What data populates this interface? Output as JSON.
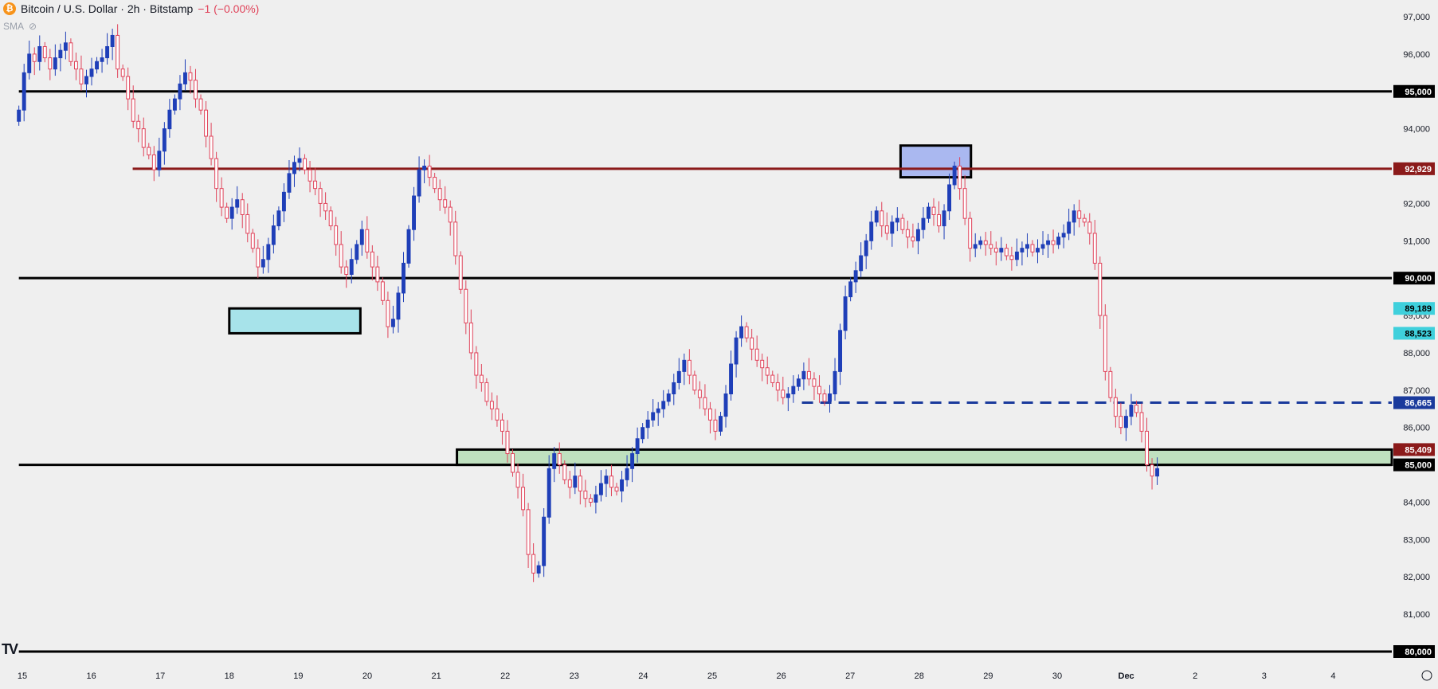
{
  "header": {
    "symbol_icon": "bitcoin-icon",
    "title": "Bitcoin / U.S. Dollar · 2h · Bitstamp",
    "change": "−1 (−0.00%)",
    "indicator": "SMA"
  },
  "colors": {
    "background": "#efefef",
    "bull": "#1f3fb8",
    "bear": "#e0435a",
    "black_level": "#000000",
    "maroon_level": "#8b1a1a",
    "dash_level": "#1a3a9c",
    "blue_zone": "#a7e3ea",
    "green_zone": "#bfe0bf",
    "top_box": "#aab8f0"
  },
  "chart_data": {
    "type": "candlestick",
    "symbol": "BTC/USD",
    "interval": "2h",
    "exchange": "Bitstamp",
    "x_ticks": [
      "15",
      "16",
      "17",
      "18",
      "19",
      "20",
      "21",
      "22",
      "23",
      "24",
      "25",
      "26",
      "27",
      "28",
      "29",
      "30",
      "Dec",
      "2",
      "3",
      "4"
    ],
    "y_ticks": [
      "97,000",
      "96,000",
      "95,000",
      "94,000",
      "93,000",
      "92,000",
      "91,000",
      "90,000",
      "89,000",
      "88,000",
      "87,000",
      "86,000",
      "85,000",
      "84,000",
      "83,000",
      "82,000",
      "81,000",
      "80,000"
    ],
    "ylim": [
      79600,
      97300
    ],
    "xlim": [
      14.95,
      19.9
    ],
    "price_labels": [
      {
        "text": "95,000",
        "value": 95000,
        "style": "black"
      },
      {
        "text": "92,929",
        "value": 92929,
        "style": "maroon"
      },
      {
        "text": "90,000",
        "value": 90000,
        "style": "black"
      },
      {
        "text": "89,189",
        "value": 89189,
        "style": "cyan"
      },
      {
        "text": "88,523",
        "value": 88523,
        "style": "cyan"
      },
      {
        "text": "86,665",
        "value": 86665,
        "style": "navy"
      },
      {
        "text": "85,409",
        "value": 85409,
        "style": "maroon"
      },
      {
        "text": "85,000",
        "value": 85000,
        "style": "black"
      },
      {
        "text": "80,000",
        "value": 80000,
        "style": "black"
      }
    ],
    "levels": [
      {
        "price": 95000,
        "from": 14.95,
        "style": "black"
      },
      {
        "price": 92929,
        "from": 16.6,
        "style": "maroon"
      },
      {
        "price": 90000,
        "from": 14.95,
        "style": "black"
      },
      {
        "price": 85000,
        "from": 14.95,
        "style": "black"
      },
      {
        "price": 80000,
        "from": 14.95,
        "style": "black"
      },
      {
        "price": 86665,
        "from": 26.3,
        "style": "dashed"
      }
    ],
    "zones": [
      {
        "from": 18.0,
        "to": 19.9,
        "low": 88523,
        "high": 89189,
        "style": "cyan"
      },
      {
        "from": 21.3,
        "to": 19.9,
        "low": 85000,
        "high": 85409,
        "style": "green"
      },
      {
        "from": 27.73,
        "to": 28.75,
        "low": 92700,
        "high": 93550,
        "style": "blue"
      }
    ],
    "candle_x_range": [
      14.95,
      31.45
    ],
    "closes": [
      94500,
      95500,
      96000,
      95800,
      96200,
      95900,
      95600,
      95900,
      96100,
      96300,
      95800,
      95600,
      95200,
      95400,
      95600,
      95800,
      95900,
      96200,
      96500,
      95600,
      95400,
      94800,
      94200,
      94000,
      93500,
      93300,
      92900,
      93400,
      94000,
      94500,
      94800,
      95200,
      95500,
      95300,
      94800,
      94500,
      93800,
      93200,
      92400,
      91900,
      91600,
      91900,
      92100,
      91700,
      91200,
      90800,
      90300,
      90500,
      90900,
      91400,
      91800,
      92300,
      92800,
      93100,
      93200,
      92900,
      92600,
      92400,
      92000,
      91800,
      91400,
      90900,
      90300,
      90100,
      90500,
      90900,
      91300,
      90700,
      90300,
      89900,
      89400,
      88700,
      88900,
      89600,
      90400,
      91300,
      92200,
      92900,
      93000,
      92700,
      92400,
      92100,
      91900,
      91500,
      90600,
      89700,
      88800,
      88000,
      87400,
      87200,
      86700,
      86500,
      86200,
      85900,
      85300,
      84800,
      84400,
      83800,
      82600,
      82100,
      82300,
      83600,
      84900,
      85300,
      85000,
      84600,
      84400,
      84700,
      84300,
      84100,
      84000,
      84200,
      84500,
      84700,
      84400,
      84300,
      84600,
      84900,
      85300,
      85700,
      86000,
      86200,
      86400,
      86500,
      86700,
      86900,
      87200,
      87500,
      87800,
      87400,
      87000,
      86800,
      86500,
      86200,
      85900,
      86300,
      86900,
      87700,
      88400,
      88700,
      88400,
      88100,
      87800,
      87600,
      87400,
      87200,
      87000,
      86800,
      86900,
      87100,
      87300,
      87500,
      87300,
      87100,
      86900,
      86700,
      86900,
      87500,
      88600,
      89500,
      89900,
      90200,
      90600,
      91000,
      91500,
      91800,
      91400,
      91200,
      91500,
      91600,
      91300,
      91100,
      91000,
      91300,
      91600,
      91900,
      91700,
      91400,
      91800,
      92500,
      93000,
      92400,
      91600,
      90800,
      90900,
      91000,
      90900,
      90800,
      90700,
      90800,
      90600,
      90500,
      90700,
      90800,
      90900,
      90700,
      90800,
      90900,
      91000,
      90900,
      91100,
      91200,
      91500,
      91800,
      91600,
      91500,
      91200,
      90400,
      89000,
      87500,
      86800,
      86300,
      86000,
      86300,
      86600,
      86400,
      85900,
      85000,
      84700,
      84900
    ]
  }
}
